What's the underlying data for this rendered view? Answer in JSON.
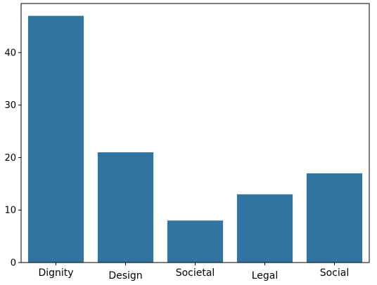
{
  "chart_data": {
    "type": "bar",
    "categories": [
      "Dignity",
      "Design",
      "Societal",
      "Legal",
      "Social"
    ],
    "values": [
      47,
      21,
      8,
      13,
      17
    ],
    "title": "",
    "xlabel": "",
    "ylabel": "",
    "ylim": [
      0,
      49.35
    ],
    "yticks": [
      0,
      10,
      20,
      30,
      40
    ],
    "grid": false,
    "colors": {
      "bar": "#3274a1",
      "axis": "#000000"
    }
  }
}
